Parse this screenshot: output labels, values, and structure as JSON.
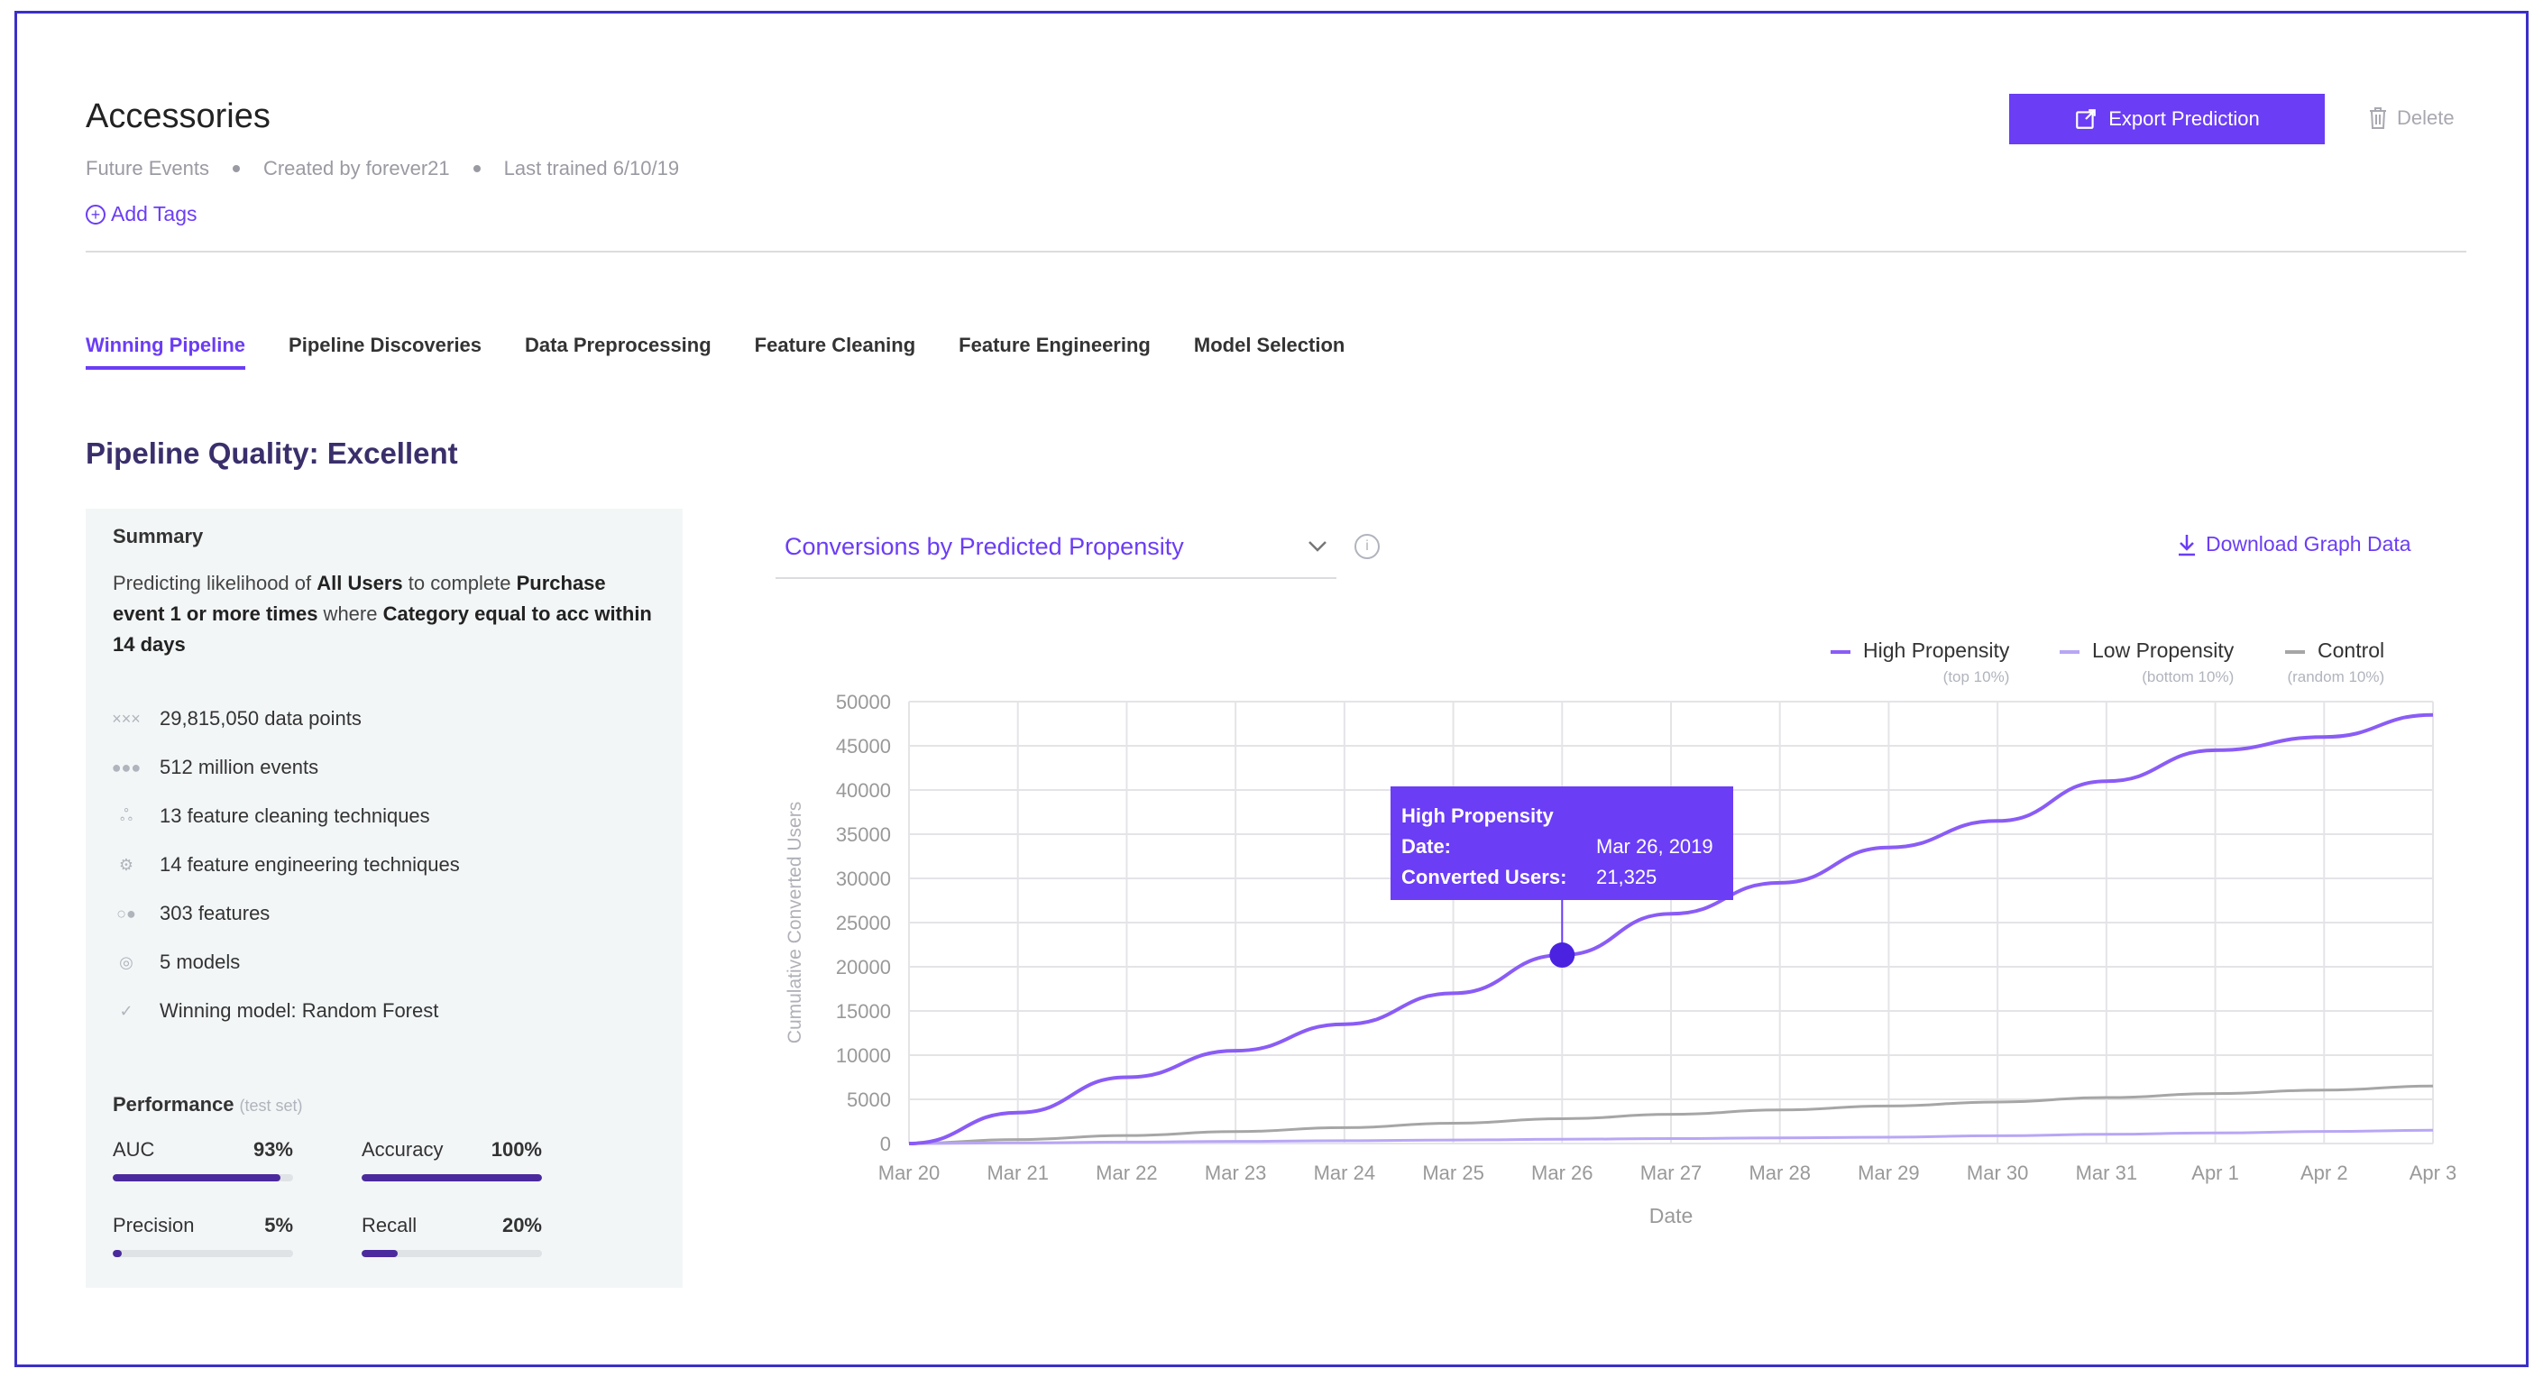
{
  "header": {
    "title": "Accessories",
    "meta": [
      "Future Events",
      "Created by forever21",
      "Last trained 6/10/19"
    ],
    "add_tags": "Add Tags",
    "export_label": "Export Prediction",
    "delete_label": "Delete"
  },
  "tabs": [
    {
      "label": "Winning Pipeline",
      "active": true
    },
    {
      "label": "Pipeline Discoveries"
    },
    {
      "label": "Data Preprocessing"
    },
    {
      "label": "Feature Cleaning"
    },
    {
      "label": "Feature Engineering"
    },
    {
      "label": "Model Selection"
    }
  ],
  "quality_title": "Pipeline Quality: Excellent",
  "summary": {
    "title": "Summary",
    "text_parts": [
      "Predicting likelihood of ",
      "All Users",
      " to complete ",
      "Purchase event 1 or more times",
      " where ",
      "Category equal to acc within 14 days"
    ],
    "stats": [
      {
        "icon": "data-points-icon",
        "text": "29,815,050 data points"
      },
      {
        "icon": "events-icon",
        "text": "512 million events"
      },
      {
        "icon": "cleaning-icon",
        "text": "13 feature cleaning techniques"
      },
      {
        "icon": "gear-icon",
        "text": "14 feature engineering techniques"
      },
      {
        "icon": "features-icon",
        "text": "303 features"
      },
      {
        "icon": "models-icon",
        "text": "5 models"
      },
      {
        "icon": "check-circle-icon",
        "text": "Winning model: Random Forest"
      }
    ],
    "performance_title": "Performance",
    "performance_sub": "(test set)",
    "metrics": [
      {
        "label": "AUC",
        "value": "93%",
        "fill": 0.93
      },
      {
        "label": "Accuracy",
        "value": "100%",
        "fill": 1.0
      },
      {
        "label": "Precision",
        "value": "5%",
        "fill": 0.05
      },
      {
        "label": "Recall",
        "value": "20%",
        "fill": 0.2
      }
    ]
  },
  "chart_panel": {
    "select_label": "Conversions by Predicted Propensity",
    "download_label": "Download Graph Data",
    "tooltip": {
      "series": "High Propensity",
      "date_key": "Date:",
      "date_val": "Mar 26, 2019",
      "users_key": "Converted Users:",
      "users_val": "21,325"
    }
  },
  "colors": {
    "accent": "#6b3df5",
    "high": "#8a5cf6",
    "low": "#b8a6f5",
    "control": "#a6a6a6",
    "dark": "#3a2f6b"
  },
  "chart_data": {
    "type": "line",
    "xlabel": "Date",
    "ylabel": "Cumulative Converted Users",
    "categories": [
      "Mar 20",
      "Mar 21",
      "Mar 22",
      "Mar 23",
      "Mar 24",
      "Mar 25",
      "Mar 26",
      "Mar 27",
      "Mar 28",
      "Mar 29",
      "Mar 30",
      "Mar 31",
      "Apr 1",
      "Apr 2",
      "Apr 3"
    ],
    "ylim": [
      0,
      50000
    ],
    "yticks": [
      0,
      5000,
      10000,
      15000,
      20000,
      25000,
      30000,
      35000,
      40000,
      45000,
      50000
    ],
    "grid": true,
    "legend_position": "top-right",
    "series": [
      {
        "name": "High Propensity",
        "sub": "(top 10%)",
        "color": "#8a5cf6",
        "values": [
          0,
          3500,
          7500,
          10500,
          13500,
          17000,
          21325,
          26000,
          29500,
          33500,
          36500,
          41000,
          44500,
          46000,
          48500
        ]
      },
      {
        "name": "Low Propensity",
        "sub": "(bottom 10%)",
        "color": "#b8a6f5",
        "values": [
          0,
          80,
          160,
          240,
          320,
          400,
          480,
          560,
          640,
          720,
          880,
          1040,
          1200,
          1360,
          1500
        ]
      },
      {
        "name": "Control",
        "sub": "(random 10%)",
        "color": "#a6a6a6",
        "values": [
          0,
          450,
          900,
          1350,
          1800,
          2300,
          2800,
          3300,
          3800,
          4250,
          4700,
          5200,
          5650,
          6050,
          6500
        ]
      }
    ],
    "highlight": {
      "series": "High Propensity",
      "index": 6
    }
  }
}
